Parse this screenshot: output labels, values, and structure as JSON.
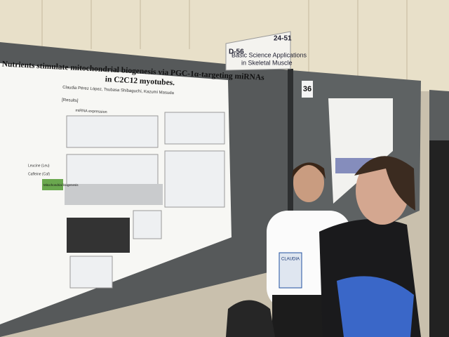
{
  "sign": {
    "code": "D-56",
    "number": "24-51",
    "title_lines": [
      "Basic Science Applications",
      "in Skeletal Muscle"
    ]
  },
  "board_number": "36",
  "poster": {
    "title_lines": [
      "Nutrients stimulate mitochondrial biogenesis via PGC-1α-targeting miRNAs",
      "in C2C12 myotubes."
    ],
    "authors": "Claudia Pérez López, Tsubasa Shibaguchi, Kazumi Masuda",
    "section": "[Results]",
    "panel_title": "miRNA expression",
    "labels": [
      "Leucine (Leu)",
      "Caffeine (Caf)",
      "Mitochondrial biogenesis"
    ]
  },
  "badge": "CLAUDIA"
}
